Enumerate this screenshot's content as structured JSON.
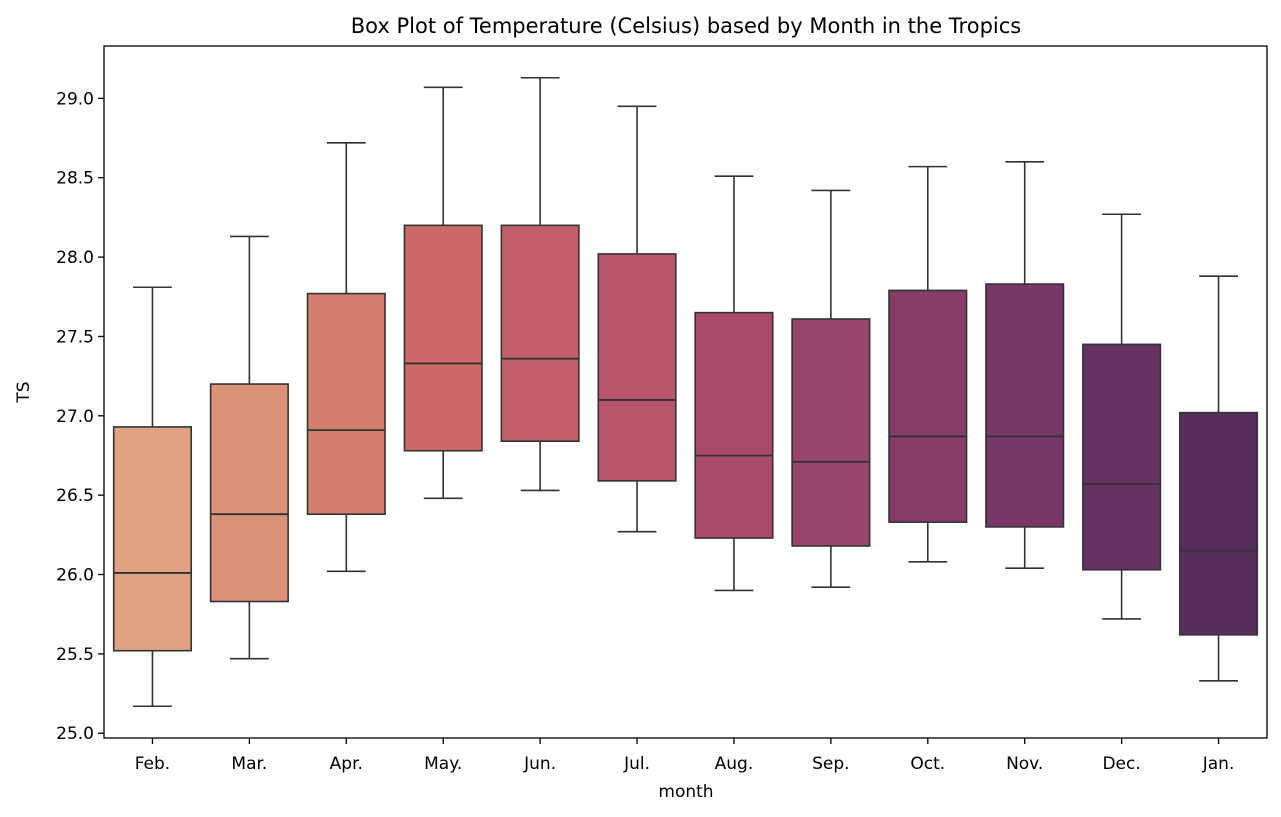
{
  "chart_data": {
    "type": "box",
    "title": "Box Plot of Temperature (Celsius) based by Month in the Tropics",
    "xlabel": "month",
    "ylabel": "TS",
    "ylim": [
      24.97,
      29.33
    ],
    "yticks": [
      25.0,
      25.5,
      26.0,
      26.5,
      27.0,
      27.5,
      28.0,
      28.5,
      29.0
    ],
    "ytick_labels": [
      "25.0",
      "25.5",
      "26.0",
      "26.5",
      "27.0",
      "27.5",
      "28.0",
      "28.5",
      "29.0"
    ],
    "grid": false,
    "categories": [
      "Feb.",
      "Mar.",
      "Apr.",
      "May.",
      "Jun.",
      "Jul.",
      "Aug.",
      "Sep.",
      "Oct.",
      "Nov.",
      "Dec.",
      "Jan."
    ],
    "boxes": [
      {
        "category": "Feb.",
        "whisker_low": 25.17,
        "q1": 25.52,
        "median": 26.01,
        "q3": 26.93,
        "whisker_high": 27.81,
        "color": "#dea283"
      },
      {
        "category": "Mar.",
        "whisker_low": 25.47,
        "q1": 25.83,
        "median": 26.38,
        "q3": 27.2,
        "whisker_high": 28.13,
        "color": "#d99177"
      },
      {
        "category": "Apr.",
        "whisker_low": 26.02,
        "q1": 26.38,
        "median": 26.91,
        "q3": 27.77,
        "whisker_high": 28.72,
        "color": "#d37e6f"
      },
      {
        "category": "May.",
        "whisker_low": 26.48,
        "q1": 26.78,
        "median": 27.33,
        "q3": 28.2,
        "whisker_high": 29.07,
        "color": "#cb6a68"
      },
      {
        "category": "Jun.",
        "whisker_low": 26.53,
        "q1": 26.84,
        "median": 27.36,
        "q3": 28.2,
        "whisker_high": 29.13,
        "color": "#c45f69"
      },
      {
        "category": "Jul.",
        "whisker_low": 26.27,
        "q1": 26.59,
        "median": 27.1,
        "q3": 28.02,
        "whisker_high": 28.95,
        "color": "#b9556b"
      },
      {
        "category": "Aug.",
        "whisker_low": 25.9,
        "q1": 26.23,
        "median": 26.75,
        "q3": 27.65,
        "whisker_high": 28.51,
        "color": "#a94a6b"
      },
      {
        "category": "Sep.",
        "whisker_low": 25.92,
        "q1": 26.18,
        "median": 26.71,
        "q3": 27.61,
        "whisker_high": 28.42,
        "color": "#97456a"
      },
      {
        "category": "Oct.",
        "whisker_low": 26.08,
        "q1": 26.33,
        "median": 26.87,
        "q3": 27.79,
        "whisker_high": 28.57,
        "color": "#853c68"
      },
      {
        "category": "Nov.",
        "whisker_low": 26.04,
        "q1": 26.3,
        "median": 26.87,
        "q3": 27.83,
        "whisker_high": 28.6,
        "color": "#773768"
      },
      {
        "category": "Dec.",
        "whisker_low": 25.72,
        "q1": 26.03,
        "median": 26.57,
        "q3": 27.45,
        "whisker_high": 28.27,
        "color": "#653262"
      },
      {
        "category": "Jan.",
        "whisker_low": 25.33,
        "q1": 25.62,
        "median": 26.15,
        "q3": 27.02,
        "whisker_high": 27.88,
        "color": "#562d5b"
      }
    ]
  }
}
